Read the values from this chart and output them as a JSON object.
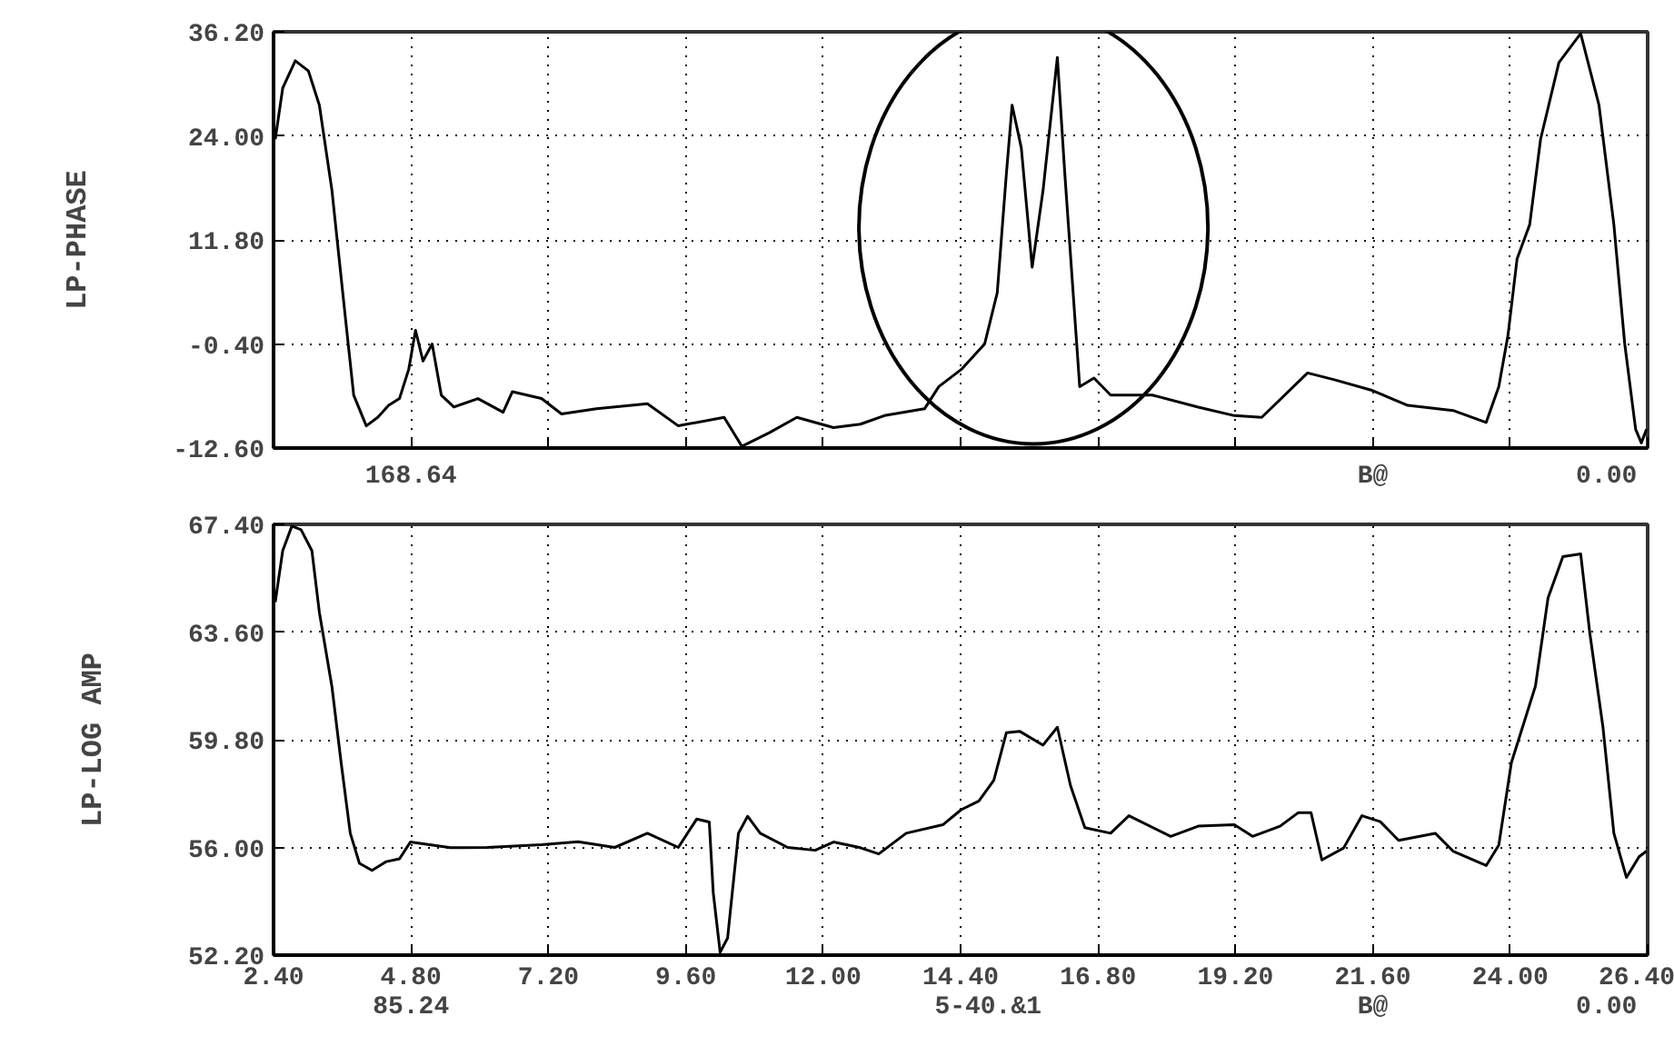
{
  "chart_data": [
    {
      "type": "line",
      "ylabel": "LP-PHASE",
      "xlim": [
        2.4,
        26.4
      ],
      "xticks": [
        2.4,
        4.8,
        7.2,
        9.6,
        12.0,
        14.4,
        16.8,
        19.2,
        21.6,
        24.0,
        26.4
      ],
      "ylim": [
        -12.6,
        36.2
      ],
      "yticks": [
        {
          "value": -12.6,
          "label": "-12.60"
        },
        {
          "value": -0.4,
          "label": "-0.40"
        },
        {
          "value": 11.8,
          "label": "11.80"
        },
        {
          "value": 24.0,
          "label": "24.00"
        },
        {
          "value": 36.2,
          "label": "36.20"
        }
      ],
      "tick_labels": "y",
      "grid": true,
      "line_style": "solid",
      "annotations": [
        "168.64",
        "B@",
        "0.00"
      ],
      "series": [
        {
          "color": "#000000",
          "x": [
            2.43,
            2.56,
            2.78,
            3.01,
            3.2,
            3.42,
            3.64,
            3.8,
            4.02,
            4.22,
            4.41,
            4.6,
            4.76,
            4.88,
            5.01,
            5.17,
            5.33,
            5.55,
            5.97,
            6.41,
            6.57,
            7.08,
            7.43,
            8.04,
            8.93,
            9.47,
            10.27,
            10.58,
            11.06,
            11.54,
            12.18,
            12.65,
            13.07,
            13.77,
            14.02,
            14.41,
            14.82,
            15.04,
            15.2,
            15.3,
            15.46,
            15.65,
            15.84,
            16.09,
            16.22,
            16.48,
            16.73,
            17.02,
            17.75,
            18.55,
            19.18,
            19.66,
            20.46,
            20.93,
            21.57,
            22.21,
            23.0,
            23.58,
            23.8,
            23.96,
            24.12,
            24.34,
            24.53,
            24.85,
            25.23,
            25.55,
            25.81,
            26.0,
            26.19,
            26.29,
            26.38
          ],
          "values": [
            23.6,
            29.6,
            32.8,
            31.6,
            27.6,
            17.6,
            3.6,
            -6.4,
            -10.0,
            -9.0,
            -7.6,
            -6.8,
            -3.4,
            1.2,
            -2.4,
            -0.4,
            -6.4,
            -7.8,
            -6.8,
            -8.4,
            -6.0,
            -6.8,
            -8.6,
            -8.0,
            -7.4,
            -10.0,
            -9.0,
            -12.4,
            -10.8,
            -9.0,
            -10.2,
            -9.8,
            -8.8,
            -8.0,
            -5.4,
            -3.4,
            -0.4,
            5.6,
            19.6,
            27.6,
            22.6,
            8.6,
            17.6,
            33.2,
            19.6,
            -5.4,
            -4.4,
            -6.4,
            -6.4,
            -7.8,
            -8.8,
            -9.0,
            -3.8,
            -4.6,
            -5.8,
            -7.6,
            -8.2,
            -9.6,
            -5.4,
            0.6,
            9.6,
            13.6,
            23.6,
            32.6,
            36.0,
            27.6,
            13.6,
            -0.4,
            -10.4,
            -12.0,
            -10.4
          ]
        }
      ]
    },
    {
      "type": "line",
      "ylabel": "LP-LOG AMP",
      "xlim": [
        2.4,
        26.4
      ],
      "xticks": [
        {
          "value": 2.4,
          "label": "2.40"
        },
        {
          "value": 4.8,
          "label": "4.80"
        },
        {
          "value": 7.2,
          "label": "7.20"
        },
        {
          "value": 9.6,
          "label": "9.60"
        },
        {
          "value": 12.0,
          "label": "12.00"
        },
        {
          "value": 14.4,
          "label": "14.40"
        },
        {
          "value": 16.8,
          "label": "16.80"
        },
        {
          "value": 19.2,
          "label": "19.20"
        },
        {
          "value": 21.6,
          "label": "21.60"
        },
        {
          "value": 24.0,
          "label": "24.00"
        },
        {
          "value": 26.4,
          "label": "26.40"
        }
      ],
      "ylim": [
        52.2,
        67.4
      ],
      "yticks": [
        {
          "value": 52.2,
          "label": "52.20"
        },
        {
          "value": 56.0,
          "label": "56.00"
        },
        {
          "value": 59.8,
          "label": "59.80"
        },
        {
          "value": 63.6,
          "label": "63.60"
        },
        {
          "value": 67.4,
          "label": "67.40"
        }
      ],
      "grid": true,
      "line_style": "solid",
      "annotations": [
        "85.24",
        "5-40.&1",
        "B@",
        "0.00"
      ],
      "series": [
        {
          "color": "#000000",
          "x": [
            2.43,
            2.56,
            2.72,
            2.88,
            3.07,
            3.2,
            3.42,
            3.58,
            3.74,
            3.9,
            4.12,
            4.37,
            4.6,
            4.79,
            5.49,
            6.13,
            7.08,
            7.72,
            8.36,
            8.93,
            9.47,
            9.79,
            10.01,
            10.08,
            10.2,
            10.33,
            10.52,
            10.68,
            10.9,
            11.38,
            11.86,
            12.18,
            12.65,
            12.97,
            13.45,
            14.09,
            14.41,
            14.72,
            14.98,
            15.2,
            15.43,
            15.84,
            16.09,
            16.32,
            16.57,
            17.02,
            17.34,
            18.07,
            18.55,
            19.18,
            19.5,
            19.98,
            20.3,
            20.52,
            20.71,
            21.09,
            21.41,
            21.73,
            22.05,
            22.69,
            23.0,
            23.58,
            23.8,
            24.02,
            24.44,
            24.66,
            24.92,
            25.23,
            25.39,
            25.62,
            25.81,
            26.03,
            26.25,
            26.38
          ],
          "values": [
            64.66,
            66.47,
            67.34,
            67.21,
            66.47,
            64.3,
            61.67,
            59.0,
            56.5,
            55.44,
            55.19,
            55.5,
            55.6,
            56.19,
            55.99,
            56.0,
            56.1,
            56.2,
            56.0,
            56.5,
            56.0,
            57.0,
            56.9,
            54.4,
            52.3,
            52.8,
            56.5,
            57.1,
            56.5,
            56.0,
            55.9,
            56.19,
            55.99,
            55.77,
            56.5,
            56.8,
            57.33,
            57.64,
            58.37,
            60.05,
            60.1,
            59.61,
            60.24,
            58.18,
            56.7,
            56.5,
            57.12,
            56.39,
            56.75,
            56.8,
            56.39,
            56.75,
            57.23,
            57.23,
            55.56,
            55.98,
            57.12,
            56.91,
            56.25,
            56.5,
            55.87,
            55.36,
            56.08,
            58.99,
            61.69,
            64.8,
            66.26,
            66.36,
            63.56,
            60.24,
            56.5,
            54.94,
            55.67,
            55.87
          ]
        }
      ]
    }
  ]
}
